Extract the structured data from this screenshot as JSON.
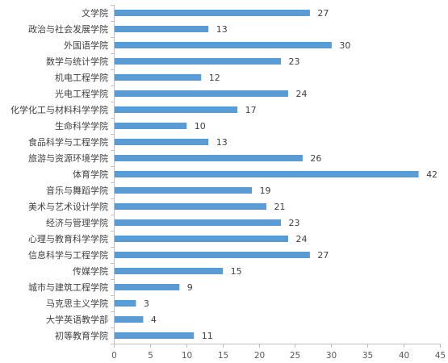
{
  "chart_data": {
    "type": "bar",
    "orientation": "horizontal",
    "title": "",
    "xlabel": "",
    "ylabel": "",
    "categories": [
      "文学院",
      "政治与社会发展学院",
      "外国语学院",
      "数学与统计学院",
      "机电工程学院",
      "光电工程学院",
      "化学化工与材料科学学院",
      "生命科学学院",
      "食品科学与工程学院",
      "旅游与资源环境学院",
      "体育学院",
      "音乐与舞蹈学院",
      "美术与艺术设计学院",
      "经济与管理学院",
      "心理与教育科学学院",
      "信息科学与工程学院",
      "传媒学院",
      "城市与建筑工程学院",
      "马克思主义学院",
      "大学英语教学部",
      "初等教育学院"
    ],
    "values": [
      27,
      13,
      30,
      23,
      12,
      24,
      17,
      10,
      13,
      26,
      42,
      19,
      21,
      23,
      24,
      27,
      15,
      9,
      3,
      4,
      11
    ],
    "xlim": [
      0,
      45
    ],
    "xticks": [
      "0",
      "5",
      "10",
      "15",
      "20",
      "25",
      "30",
      "35",
      "40",
      "45"
    ],
    "grid": false,
    "legend": "none",
    "bar_color": "#5B9BD5",
    "axis_color": "#BFBFBF"
  }
}
